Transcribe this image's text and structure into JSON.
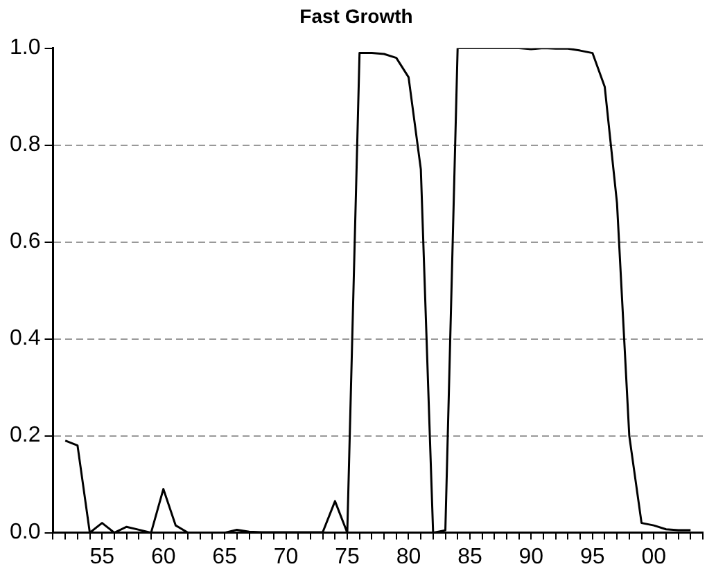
{
  "chart_data": {
    "type": "line",
    "title": "Fast Growth",
    "x": [
      1952,
      1953,
      1954,
      1955,
      1956,
      1957,
      1958,
      1959,
      1960,
      1961,
      1962,
      1963,
      1964,
      1965,
      1966,
      1967,
      1968,
      1969,
      1970,
      1971,
      1972,
      1973,
      1974,
      1975,
      1976,
      1977,
      1978,
      1979,
      1980,
      1981,
      1982,
      1983,
      1984,
      1985,
      1986,
      1987,
      1988,
      1989,
      1990,
      1991,
      1992,
      1993,
      1994,
      1995,
      1996,
      1997,
      1998,
      1999,
      2000,
      2001,
      2002,
      2003
    ],
    "series": [
      {
        "color": "#000000",
        "values": [
          0.19,
          0.18,
          0.0,
          0.02,
          0.0,
          0.012,
          0.006,
          0.0,
          0.09,
          0.015,
          0.0,
          0.0,
          0.0,
          0.0,
          0.006,
          0.002,
          0.001,
          0.001,
          0.001,
          0.001,
          0.001,
          0.001,
          0.065,
          0.0,
          0.99,
          0.99,
          0.988,
          0.98,
          0.94,
          0.75,
          0.0,
          0.005,
          1.0,
          1.0,
          1.0,
          1.0,
          1.0,
          1.0,
          0.998,
          1.0,
          0.999,
          0.999,
          0.995,
          0.99,
          0.92,
          0.68,
          0.2,
          0.02,
          0.015,
          0.007,
          0.005,
          0.005
        ]
      }
    ],
    "xlim": [
      1951,
      2004
    ],
    "xticks": [
      {
        "value": 1951,
        "label": null
      },
      {
        "value": 1952,
        "label": null
      },
      {
        "value": 1953,
        "label": null
      },
      {
        "value": 1954,
        "label": null
      },
      {
        "value": 1955,
        "label": "55"
      },
      {
        "value": 1956,
        "label": null
      },
      {
        "value": 1957,
        "label": null
      },
      {
        "value": 1958,
        "label": null
      },
      {
        "value": 1959,
        "label": null
      },
      {
        "value": 1960,
        "label": "60"
      },
      {
        "value": 1961,
        "label": null
      },
      {
        "value": 1962,
        "label": null
      },
      {
        "value": 1963,
        "label": null
      },
      {
        "value": 1964,
        "label": null
      },
      {
        "value": 1965,
        "label": "65"
      },
      {
        "value": 1966,
        "label": null
      },
      {
        "value": 1967,
        "label": null
      },
      {
        "value": 1968,
        "label": null
      },
      {
        "value": 1969,
        "label": null
      },
      {
        "value": 1970,
        "label": "70"
      },
      {
        "value": 1971,
        "label": null
      },
      {
        "value": 1972,
        "label": null
      },
      {
        "value": 1973,
        "label": null
      },
      {
        "value": 1974,
        "label": null
      },
      {
        "value": 1975,
        "label": "75"
      },
      {
        "value": 1976,
        "label": null
      },
      {
        "value": 1977,
        "label": null
      },
      {
        "value": 1978,
        "label": null
      },
      {
        "value": 1979,
        "label": null
      },
      {
        "value": 1980,
        "label": "80"
      },
      {
        "value": 1981,
        "label": null
      },
      {
        "value": 1982,
        "label": null
      },
      {
        "value": 1983,
        "label": null
      },
      {
        "value": 1984,
        "label": null
      },
      {
        "value": 1985,
        "label": "85"
      },
      {
        "value": 1986,
        "label": null
      },
      {
        "value": 1987,
        "label": null
      },
      {
        "value": 1988,
        "label": null
      },
      {
        "value": 1989,
        "label": null
      },
      {
        "value": 1990,
        "label": "90"
      },
      {
        "value": 1991,
        "label": null
      },
      {
        "value": 1992,
        "label": null
      },
      {
        "value": 1993,
        "label": null
      },
      {
        "value": 1994,
        "label": null
      },
      {
        "value": 1995,
        "label": "95"
      },
      {
        "value": 1996,
        "label": null
      },
      {
        "value": 1997,
        "label": null
      },
      {
        "value": 1998,
        "label": null
      },
      {
        "value": 1999,
        "label": null
      },
      {
        "value": 2000,
        "label": "00"
      },
      {
        "value": 2001,
        "label": null
      },
      {
        "value": 2002,
        "label": null
      },
      {
        "value": 2003,
        "label": null
      },
      {
        "value": 2004,
        "label": null
      }
    ],
    "ylim": [
      0,
      1
    ],
    "yticks": [
      {
        "value": 0,
        "label": "0.0"
      },
      {
        "value": 0.2,
        "label": "0.2"
      },
      {
        "value": 0.4,
        "label": "0.4"
      },
      {
        "value": 0.6,
        "label": "0.6"
      },
      {
        "value": 0.8,
        "label": "0.8"
      },
      {
        "value": 1,
        "label": "1.0"
      }
    ],
    "grid": "y",
    "marker": "none",
    "line_style": "solid",
    "legend": false
  }
}
